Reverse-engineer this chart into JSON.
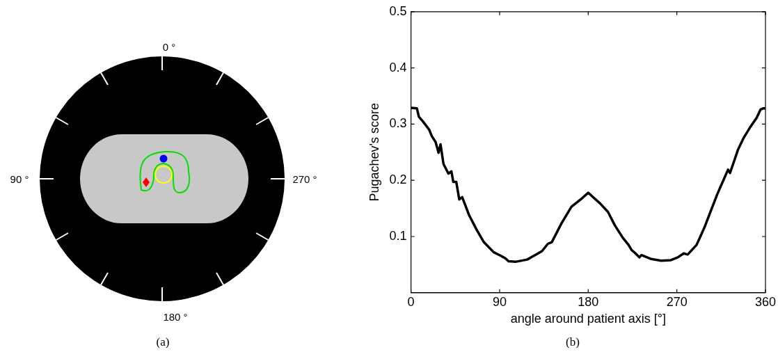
{
  "chart_data": [
    {
      "type": "other",
      "annotations": [
        "0 °",
        "90 °",
        "270 °",
        "180 °",
        "(a)"
      ]
    },
    {
      "type": "line",
      "xlabel": "angle around patient axis [°]",
      "ylabel": "Pugachev's score",
      "annotations": [
        "(b)"
      ],
      "xlim": [
        0,
        360
      ],
      "xticks": [
        0,
        90,
        180,
        270,
        360
      ],
      "ylim": [
        0,
        0.5
      ],
      "yticks": [
        0.1,
        0.2,
        0.3,
        0.4,
        0.5
      ],
      "grid": false,
      "series": [
        {
          "color": "#000000",
          "x": [
            0,
            6,
            8,
            12,
            18.5,
            21,
            25,
            28,
            30,
            33,
            38,
            41,
            43,
            46,
            49,
            52,
            59,
            67,
            74,
            84,
            91,
            96,
            99,
            106,
            118,
            126,
            133,
            139,
            143,
            153,
            163,
            173,
            180,
            185,
            192,
            200,
            207,
            215,
            221,
            224,
            228,
            232,
            234,
            244,
            254,
            264,
            271,
            277,
            281,
            290,
            298,
            311,
            322,
            324,
            332,
            338,
            345,
            351,
            355,
            357.6,
            360
          ],
          "values": [
            0.329,
            0.328,
            0.313,
            0.305,
            0.29,
            0.279,
            0.268,
            0.249,
            0.264,
            0.229,
            0.212,
            0.216,
            0.197,
            0.197,
            0.166,
            0.17,
            0.138,
            0.111,
            0.09,
            0.072,
            0.066,
            0.061,
            0.056,
            0.055,
            0.059,
            0.067,
            0.074,
            0.087,
            0.09,
            0.124,
            0.153,
            0.167,
            0.178,
            0.17,
            0.159,
            0.144,
            0.12,
            0.098,
            0.085,
            0.076,
            0.07,
            0.063,
            0.067,
            0.06,
            0.057,
            0.058,
            0.063,
            0.07,
            0.068,
            0.085,
            0.116,
            0.175,
            0.219,
            0.213,
            0.254,
            0.276,
            0.296,
            0.311,
            0.326,
            0.328,
            0.328
          ]
        }
      ]
    }
  ]
}
